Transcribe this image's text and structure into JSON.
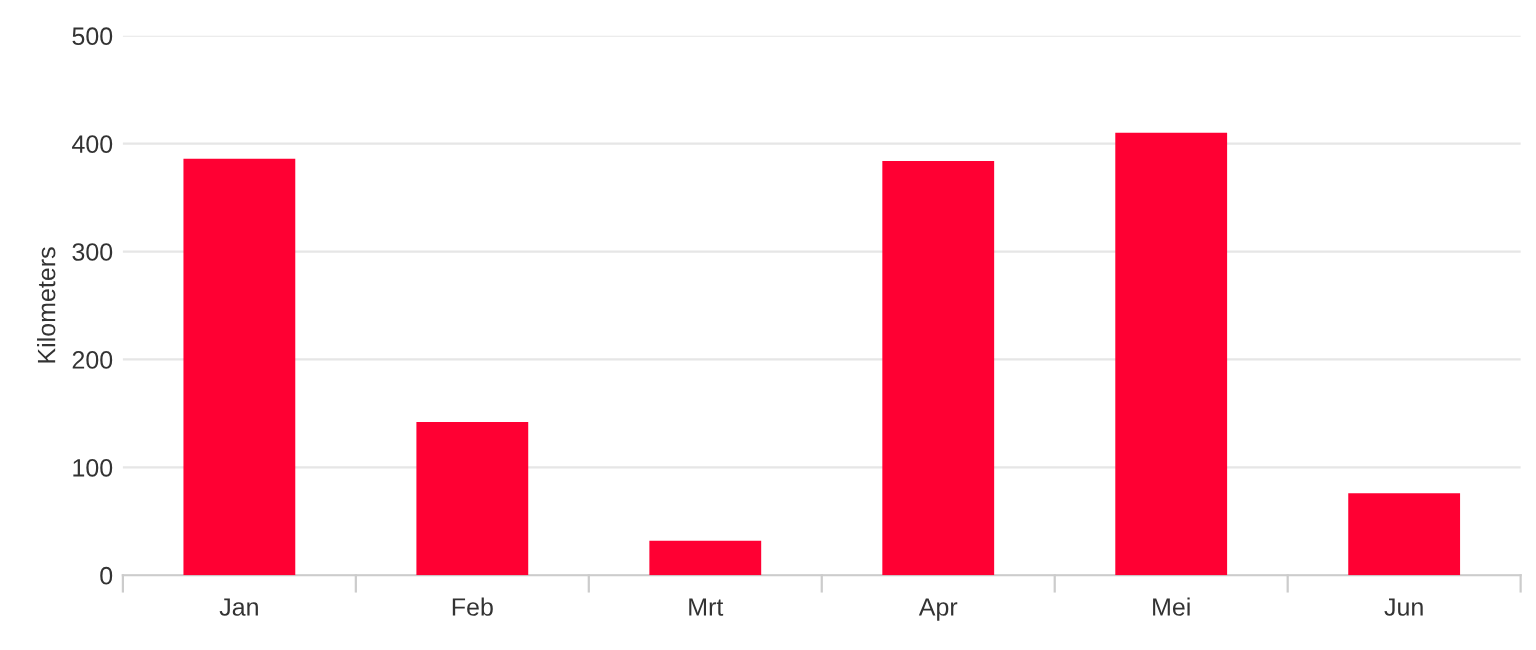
{
  "chart_data": {
    "type": "bar",
    "ylabel": "Kilometers",
    "categories": [
      "Jan",
      "Feb",
      "Mrt",
      "Apr",
      "Mei",
      "Jun"
    ],
    "series": [
      {
        "color": "#ff0033",
        "values": [
          386,
          142,
          32,
          384,
          410,
          76
        ]
      }
    ],
    "ylim": [
      0,
      500
    ],
    "yticks": [
      0,
      100,
      200,
      300,
      400,
      500
    ],
    "grid": "y",
    "legend": false
  }
}
